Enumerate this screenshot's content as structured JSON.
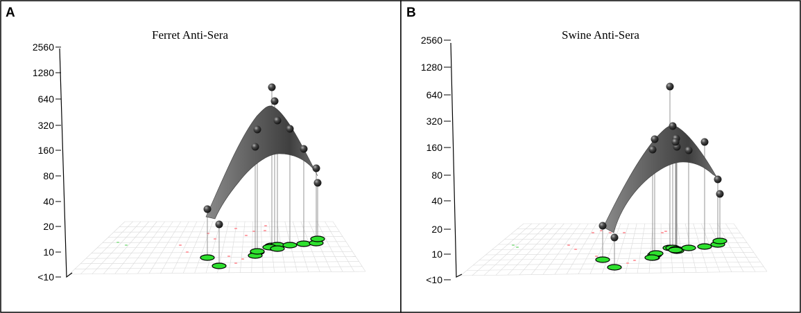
{
  "panels": [
    {
      "letter": "A",
      "chart_data": {
        "type": "scatter",
        "title": "Ferret Anti-Sera",
        "y_axis": {
          "scale": "log2",
          "tick_labels": [
            "<10",
            "10",
            "20",
            "40",
            "80",
            "160",
            "320",
            "640",
            "1280",
            "2560"
          ],
          "tick_values": [
            5,
            10,
            20,
            40,
            80,
            160,
            320,
            640,
            1280,
            2560
          ],
          "ylim": [
            "<10",
            2560
          ]
        },
        "surface": "fitted response surface over antigenic map (dark grey)",
        "points_titer": [
          30,
          20,
          1000,
          660,
          270,
          170,
          300,
          275,
          130,
          70,
          50
        ]
      }
    },
    {
      "letter": "B",
      "chart_data": {
        "type": "scatter",
        "title": "Swine Anti-Sera",
        "y_axis": {
          "scale": "log2",
          "tick_labels": [
            "<10",
            "10",
            "20",
            "40",
            "80",
            "160",
            "320",
            "640",
            "1280",
            "2560"
          ],
          "tick_values": [
            5,
            10,
            20,
            40,
            80,
            160,
            320,
            640,
            1280,
            2560
          ],
          "ylim": [
            "<10",
            2560
          ]
        },
        "surface": "fitted response surface over antigenic map (dark grey)",
        "points_titer": [
          20,
          13,
          180,
          140,
          800,
          300,
          170,
          160,
          140,
          150,
          190,
          70,
          50
        ]
      }
    }
  ],
  "colors": {
    "surface": "#5a5a5a",
    "sphere": "#3a3a3a",
    "disk": "#2ee02e",
    "grid": "#d9d9d9",
    "map_marks": "#ff9aa0"
  }
}
